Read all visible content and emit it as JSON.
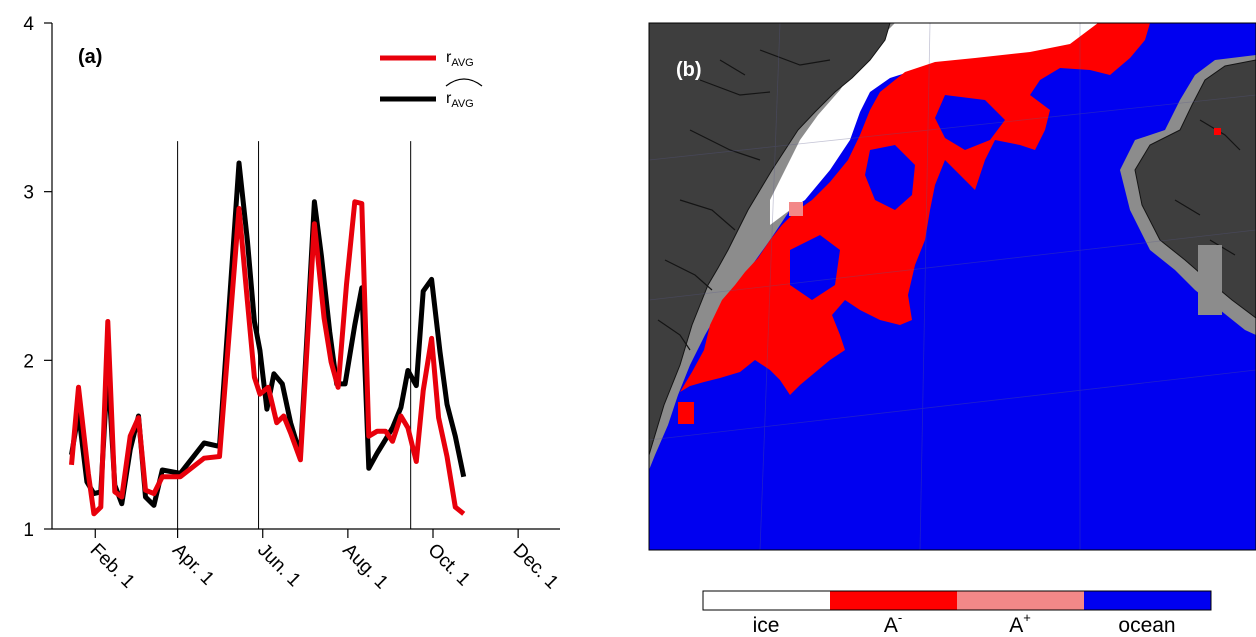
{
  "chart_data": [
    {
      "type": "line",
      "panel_label": "(a)",
      "xlabel": "",
      "ylabel": "",
      "ylim": [
        1,
        4
      ],
      "yticks": [
        1,
        2,
        3,
        4
      ],
      "x_ticks": [
        {
          "label": "Feb. 1",
          "doy": 32
        },
        {
          "label": "Apr. 1",
          "doy": 91
        },
        {
          "label": "Jun. 1",
          "doy": 152
        },
        {
          "label": "Aug. 1",
          "doy": 213
        },
        {
          "label": "Oct. 1",
          "doy": 274
        },
        {
          "label": "Dec. 1",
          "doy": 335
        }
      ],
      "xlim_doy": [
        1,
        365
      ],
      "vlines_doy": [
        91,
        149,
        258
      ],
      "legend_position": "top-right",
      "series": [
        {
          "name": "r",
          "name_subscript": "AVG",
          "color": "#e8000b",
          "points": [
            [
              15,
              1.38
            ],
            [
              20,
              1.84
            ],
            [
              27,
              1.33
            ],
            [
              31,
              1.09
            ],
            [
              36,
              1.13
            ],
            [
              41,
              2.23
            ],
            [
              46,
              1.22
            ],
            [
              51,
              1.19
            ],
            [
              57,
              1.55
            ],
            [
              63,
              1.66
            ],
            [
              68,
              1.23
            ],
            [
              74,
              1.21
            ],
            [
              80,
              1.31
            ],
            [
              93,
              1.31
            ],
            [
              110,
              1.42
            ],
            [
              121,
              1.43
            ],
            [
              135,
              2.9
            ],
            [
              141,
              2.35
            ],
            [
              146,
              1.9
            ],
            [
              150,
              1.8
            ],
            [
              156,
              1.84
            ],
            [
              162,
              1.63
            ],
            [
              167,
              1.67
            ],
            [
              172,
              1.57
            ],
            [
              179,
              1.41
            ],
            [
              189,
              2.81
            ],
            [
              196,
              2.25
            ],
            [
              201,
              1.99
            ],
            [
              206,
              1.84
            ],
            [
              212,
              2.45
            ],
            [
              218,
              2.94
            ],
            [
              223,
              2.93
            ],
            [
              228,
              1.55
            ],
            [
              234,
              1.58
            ],
            [
              240,
              1.58
            ],
            [
              245,
              1.52
            ],
            [
              251,
              1.67
            ],
            [
              256,
              1.6
            ],
            [
              262,
              1.4
            ],
            [
              267,
              1.82
            ],
            [
              273,
              2.13
            ],
            [
              278,
              1.66
            ],
            [
              284,
              1.43
            ],
            [
              290,
              1.13
            ],
            [
              296,
              1.09
            ]
          ]
        },
        {
          "name": "r",
          "name_subscript": "AVG",
          "name_hat": true,
          "color": "#000000",
          "points": [
            [
              15,
              1.44
            ],
            [
              20,
              1.69
            ],
            [
              26,
              1.28
            ],
            [
              31,
              1.21
            ],
            [
              36,
              1.22
            ],
            [
              41,
              1.96
            ],
            [
              46,
              1.26
            ],
            [
              51,
              1.15
            ],
            [
              57,
              1.47
            ],
            [
              63,
              1.67
            ],
            [
              68,
              1.19
            ],
            [
              74,
              1.14
            ],
            [
              80,
              1.35
            ],
            [
              93,
              1.33
            ],
            [
              110,
              1.51
            ],
            [
              121,
              1.49
            ],
            [
              135,
              3.17
            ],
            [
              141,
              2.71
            ],
            [
              146,
              2.23
            ],
            [
              150,
              2.06
            ],
            [
              155,
              1.71
            ],
            [
              160,
              1.92
            ],
            [
              166,
              1.86
            ],
            [
              172,
              1.63
            ],
            [
              179,
              1.44
            ],
            [
              189,
              2.94
            ],
            [
              194,
              2.62
            ],
            [
              200,
              2.17
            ],
            [
              205,
              1.86
            ],
            [
              211,
              1.86
            ],
            [
              218,
              2.21
            ],
            [
              223,
              2.43
            ],
            [
              228,
              1.36
            ],
            [
              234,
              1.45
            ],
            [
              240,
              1.53
            ],
            [
              245,
              1.6
            ],
            [
              251,
              1.72
            ],
            [
              256,
              1.94
            ],
            [
              262,
              1.85
            ],
            [
              267,
              2.41
            ],
            [
              273,
              2.48
            ],
            [
              279,
              2.05
            ],
            [
              284,
              1.74
            ],
            [
              290,
              1.55
            ],
            [
              296,
              1.31
            ]
          ]
        }
      ]
    },
    {
      "type": "heatmap",
      "panel_label": "(b)",
      "legend": {
        "categories": [
          {
            "label": "ice",
            "color": "#ffffff"
          },
          {
            "label": "A",
            "superscript": "-",
            "color": "#ff0000"
          },
          {
            "label": "A",
            "superscript": "+",
            "color": "#f38888"
          },
          {
            "label": "ocean",
            "color": "#0000f0"
          }
        ]
      },
      "colors": {
        "land": "#3e3e3e",
        "land_edge": "#141414",
        "coast_shelf": "#8c8c8c",
        "ice": "#ffffff",
        "a_minus": "#ff0000",
        "a_plus": "#f38888",
        "ocean": "#0000f0"
      }
    }
  ]
}
